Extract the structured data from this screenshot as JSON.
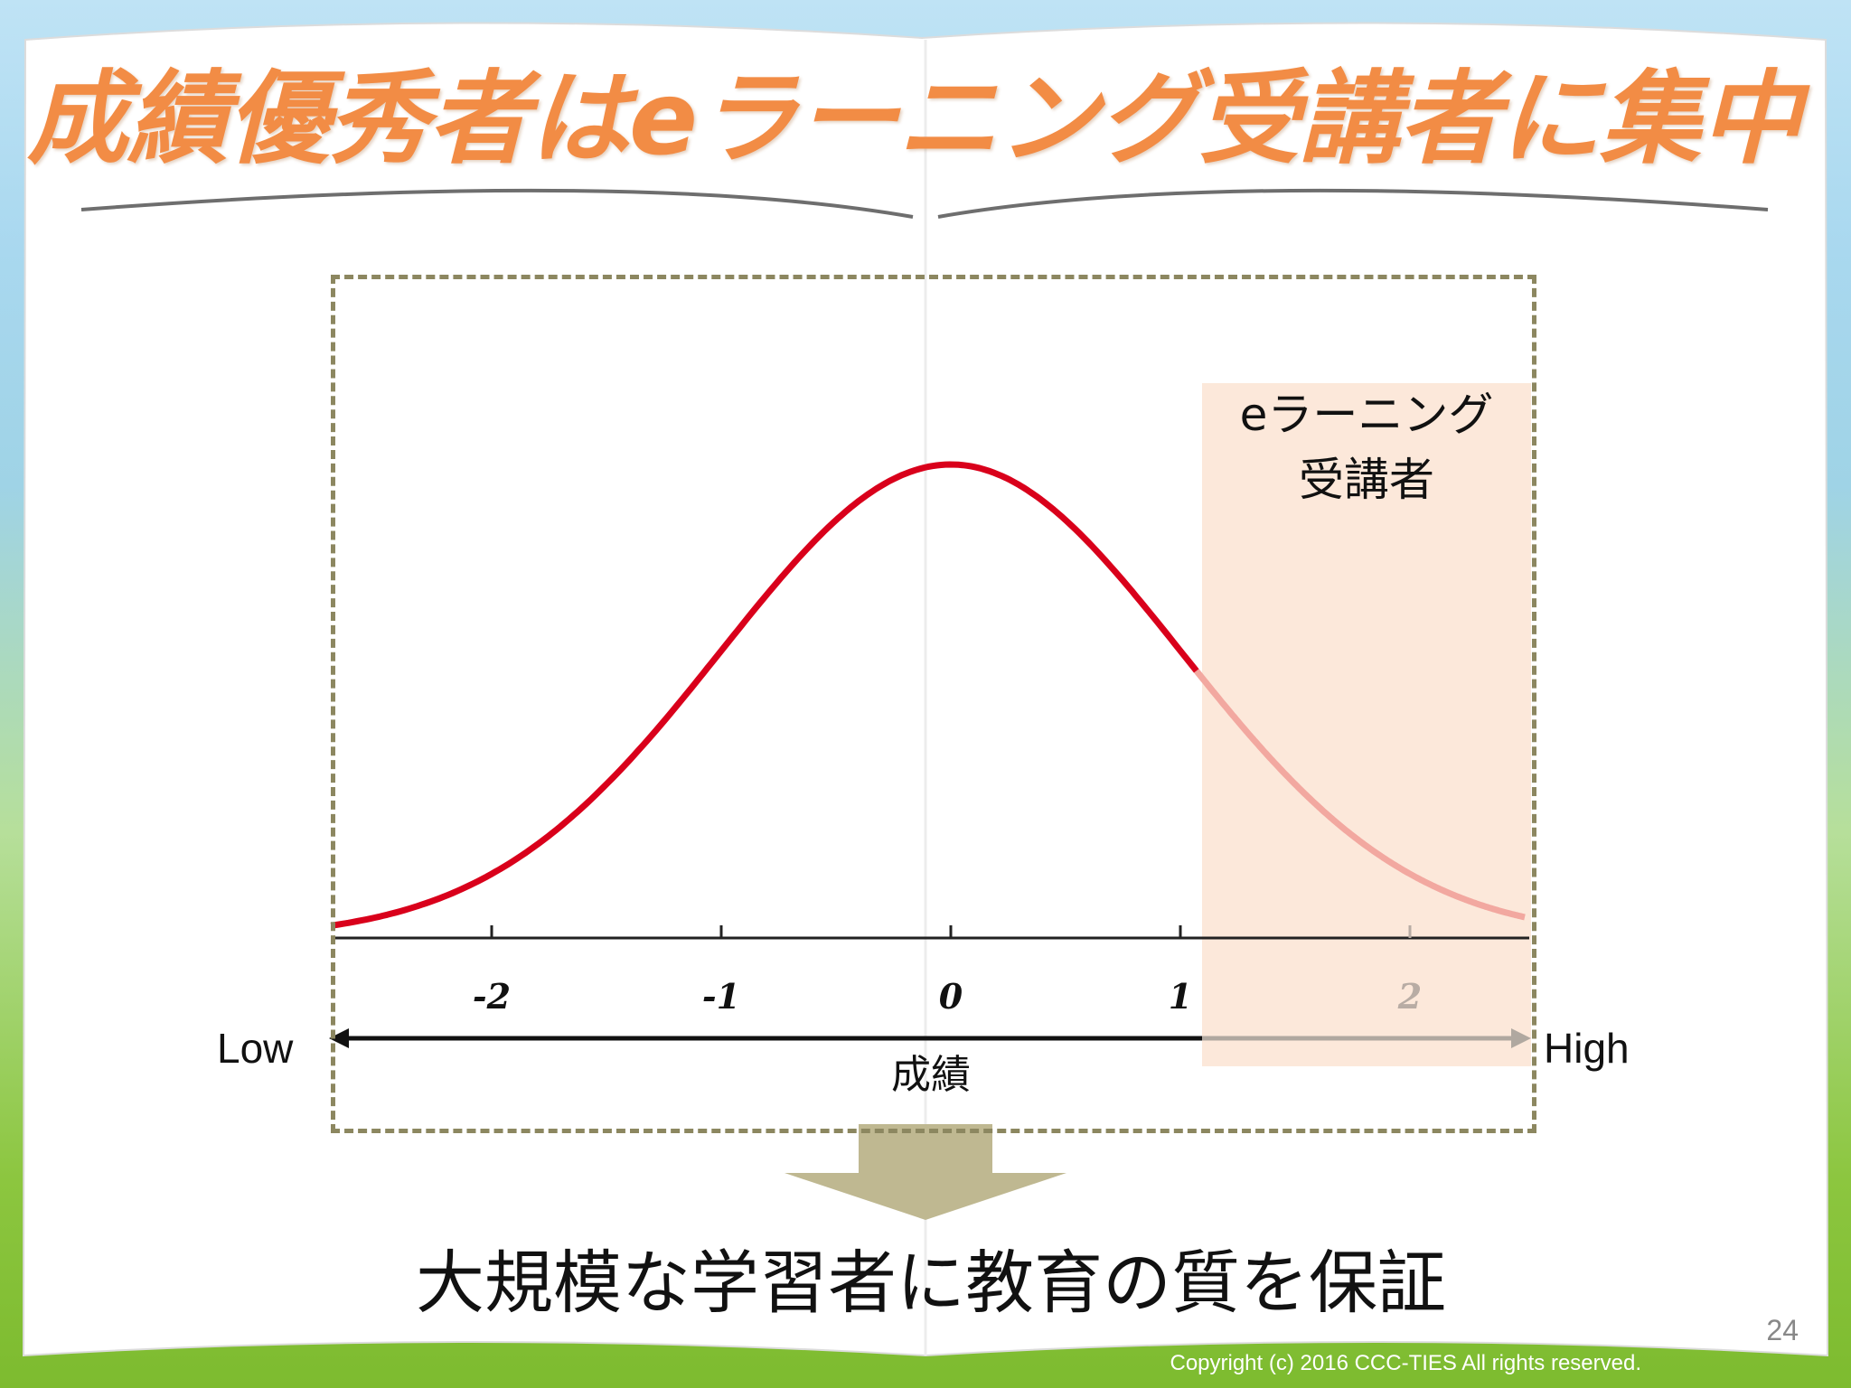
{
  "slide": {
    "title": "成績優秀者はeラーニング受講者に集中",
    "highlight_label_line1": "eラーニング",
    "highlight_label_line2": "受講者",
    "low_label": "Low",
    "high_label": "High",
    "axis_label": "成績",
    "conclusion": "大規模な学習者に教育の質を保証",
    "page_number": "24",
    "copyright": "Copyright (c) 2016 CCC-TIES All rights reserved."
  },
  "chart_data": {
    "type": "line",
    "curve": "normal distribution",
    "x_ticks": [
      "-2",
      "-1",
      "0",
      "1",
      "2"
    ],
    "x_range": [
      -2.7,
      2.5
    ],
    "highlight_from_x": 1.07,
    "colors": {
      "curve": "#d9001b",
      "curve_highlighted": "#f2a8a0",
      "highlight_fill": "#fbe4d4",
      "frame": "#8c8760",
      "title": "#f28c45",
      "down_arrow": "#bfb891"
    }
  }
}
